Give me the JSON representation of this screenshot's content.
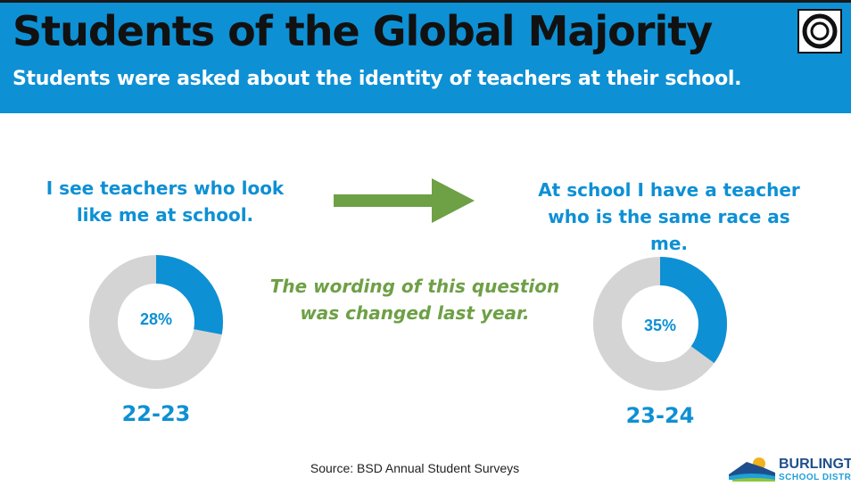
{
  "header": {
    "title": "Students of the Global Majority",
    "subtitle": "Students were asked about the identity of teachers at their school."
  },
  "left": {
    "question": "I see teachers who look like me at school.",
    "percent_label": "28%",
    "percent": 28,
    "year": "22-23"
  },
  "right": {
    "question": "At school I have a teacher who is the same race as me.",
    "percent_label": "35%",
    "percent": 35,
    "year": "23-24"
  },
  "note": "The wording of this question was changed last year.",
  "source": "Source: BSD Annual Student Surveys",
  "brand": {
    "line1": "BURLINGTON",
    "line2": "SCHOOL DISTRICT"
  },
  "colors": {
    "blue": "#0e90d4",
    "gray": "#d4d4d4",
    "green": "#6ea046"
  }
}
